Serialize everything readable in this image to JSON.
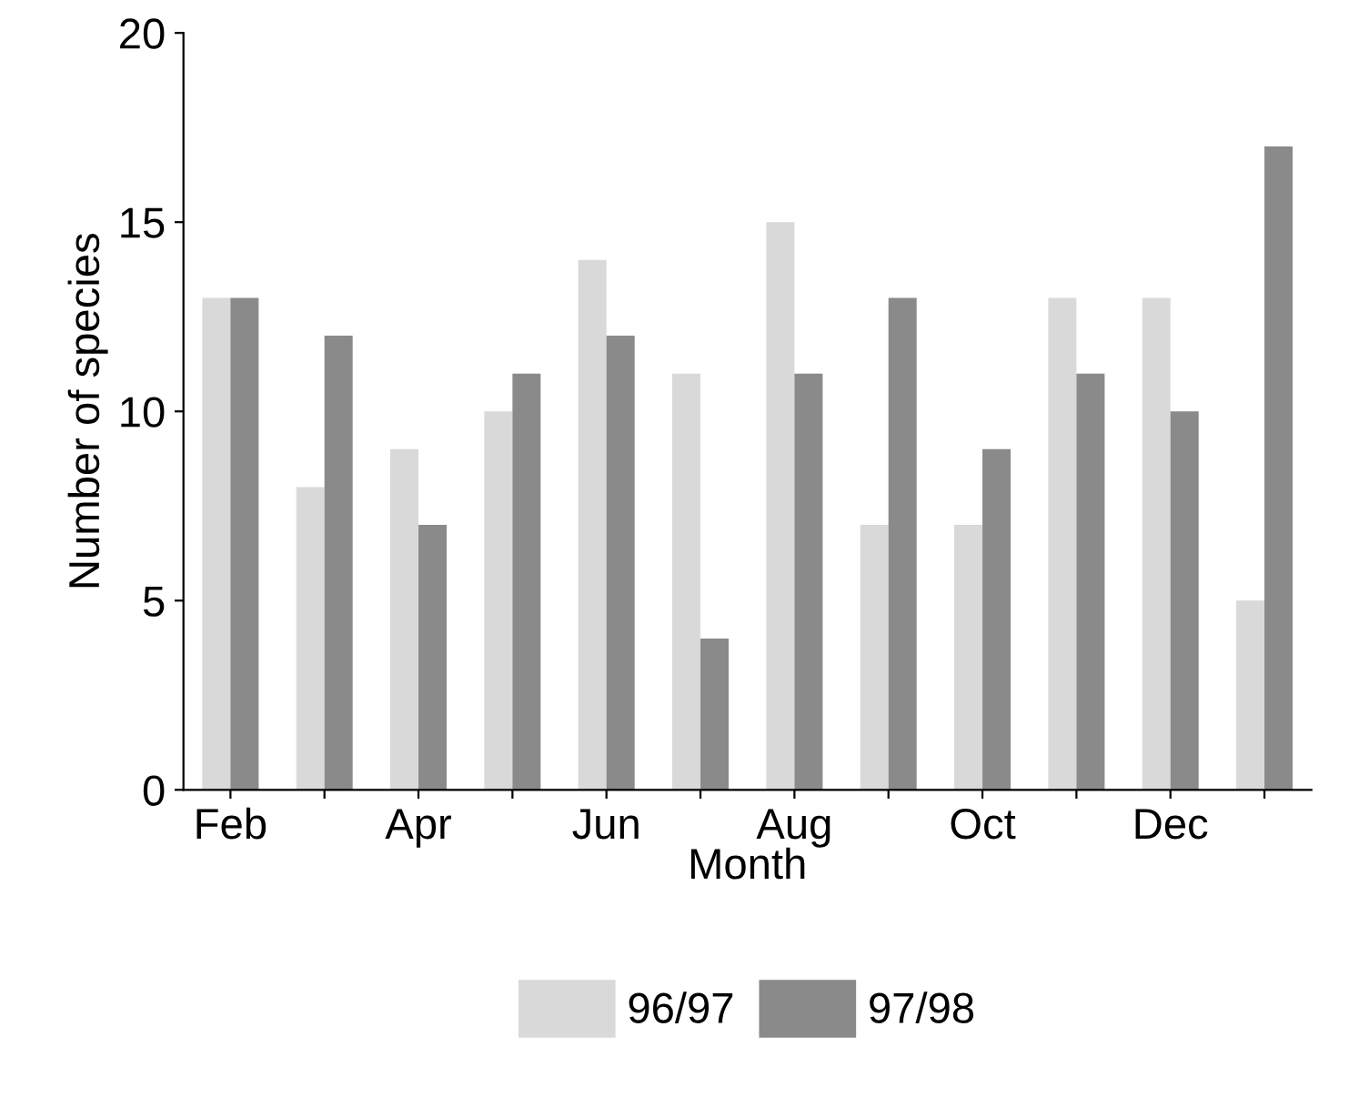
{
  "chart_data": {
    "type": "bar",
    "xlabel": "Month",
    "ylabel": "Number of species",
    "categories": [
      "Feb",
      null,
      "Apr",
      null,
      "Jun",
      null,
      "Aug",
      null,
      "Oct",
      null,
      "Dec",
      null
    ],
    "series": [
      {
        "name": "96/97",
        "color": "#d9d9d9",
        "values": [
          13,
          8,
          9,
          10,
          14,
          11,
          15,
          7,
          7,
          13,
          13,
          5
        ]
      },
      {
        "name": "97/98",
        "color": "#8a8a8a",
        "values": [
          13,
          12,
          7,
          11,
          12,
          4,
          11,
          13,
          9,
          11,
          10,
          17
        ]
      }
    ],
    "ylim": [
      0,
      20
    ],
    "yticks": [
      0,
      5,
      10,
      15,
      20
    ],
    "grid": false,
    "legend": "bottom"
  }
}
